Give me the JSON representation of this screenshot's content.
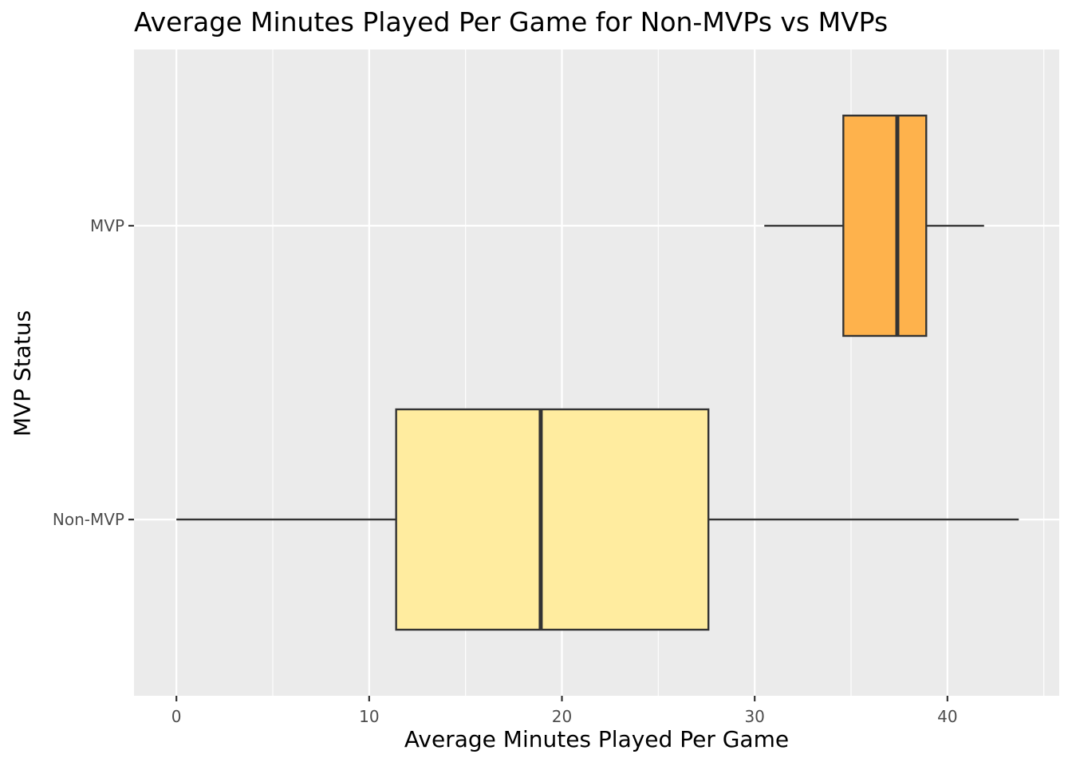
{
  "chart_data": {
    "type": "boxplot",
    "orientation": "horizontal",
    "title": "Average Minutes Played Per Game for Non-MVPs vs MVPs",
    "xlabel": "Average Minutes Played Per Game",
    "ylabel": "MVP Status",
    "xlim": [
      -2.2,
      45.8
    ],
    "x_ticks": [
      0,
      10,
      20,
      30,
      40
    ],
    "x_minor_ticks": [
      5,
      15,
      25,
      35,
      45
    ],
    "categories": [
      "Non-MVP",
      "MVP"
    ],
    "boxes": [
      {
        "category": "Non-MVP",
        "whisker_low": 0,
        "q1": 11.4,
        "median": 18.9,
        "q3": 27.6,
        "whisker_high": 43.7,
        "fill": "#FFEC9F"
      },
      {
        "category": "MVP",
        "whisker_low": 30.5,
        "q1": 34.6,
        "median": 37.4,
        "q3": 38.9,
        "whisker_high": 41.9,
        "fill": "#FEB24C"
      }
    ],
    "grid": true,
    "legend": "none",
    "panel_background": "#EBEBEB",
    "outline_color": "#333333"
  }
}
